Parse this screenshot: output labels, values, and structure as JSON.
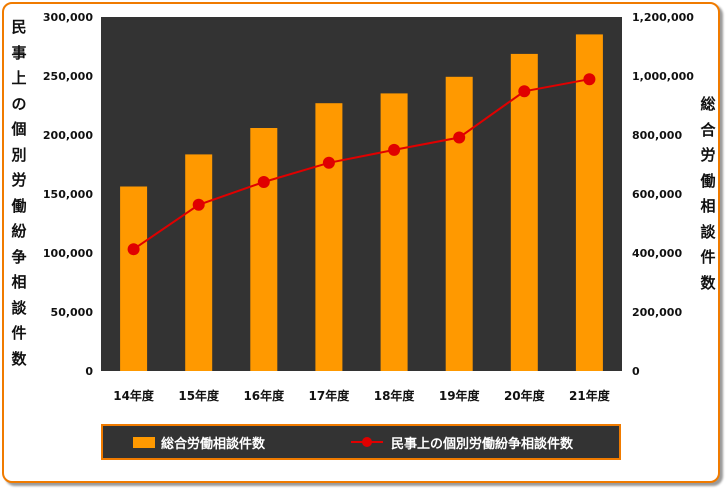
{
  "chart_data": {
    "type": "bar+line",
    "categories": [
      "14年度",
      "15年度",
      "16年度",
      "17年度",
      "18年度",
      "19年度",
      "20年度",
      "21年度"
    ],
    "series": [
      {
        "name": "総合労働相談件数",
        "type": "bar",
        "axis": "right",
        "color": "#ff9900",
        "values": [
          625572,
          734257,
          823864,
          907869,
          941000,
          997237,
          1075021,
          1141006
        ]
      },
      {
        "name": "民事上の個別労働紛争相談件数",
        "type": "line",
        "axis": "left",
        "color": "#e00000",
        "values": [
          103194,
          140822,
          160166,
          176429,
          187387,
          197904,
          236993,
          247302
        ]
      }
    ],
    "left_axis": {
      "label": "民事上の個別労働紛争相談件数",
      "ylim": [
        0,
        300000
      ],
      "tick_labels": [
        "0",
        "50,000",
        "100,000",
        "150,000",
        "200,000",
        "250,000",
        "300,000"
      ]
    },
    "right_axis": {
      "label": "総合労働相談件数",
      "ylim": [
        0,
        1200000
      ],
      "tick_labels": [
        "0",
        "200,000",
        "400,000",
        "600,000",
        "800,000",
        "1,000,000",
        "1,200,000"
      ]
    },
    "plot_background": "#333333",
    "grid": false,
    "legend_position": "bottom"
  }
}
